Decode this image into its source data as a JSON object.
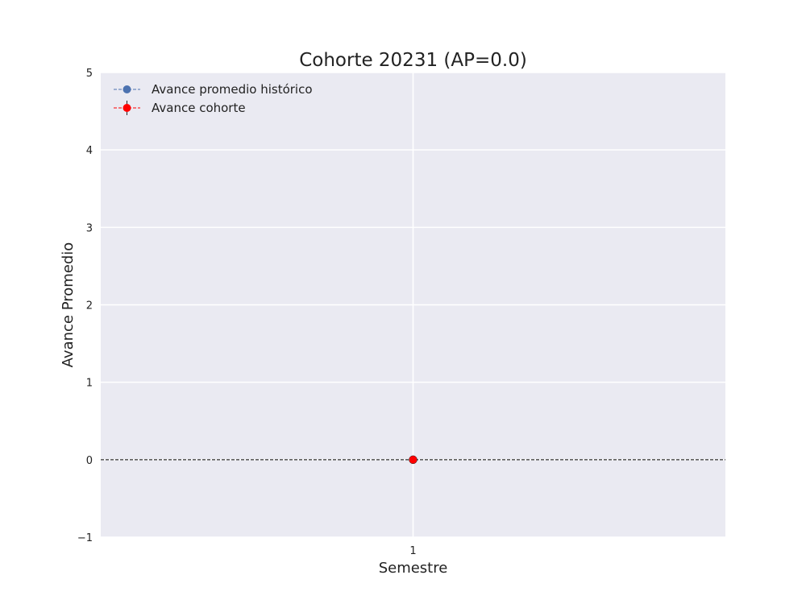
{
  "chart_data": {
    "type": "line",
    "title": "Cohorte 20231 (AP=0.0)",
    "xlabel": "Semestre",
    "ylabel": "Avance Promedio",
    "x_ticks": [
      "1"
    ],
    "y_ticks": [
      "−1",
      "0",
      "1",
      "2",
      "3",
      "4",
      "5"
    ],
    "ylim": [
      -1,
      5
    ],
    "grid": true,
    "legend_position": "top-left",
    "reference_line_y": 0,
    "series": [
      {
        "name": "Avance promedio histórico",
        "color": "#4c72b0",
        "x": [],
        "y": []
      },
      {
        "name": "Avance cohorte",
        "color": "#ff0000",
        "x": [
          1
        ],
        "y": [
          0
        ]
      }
    ],
    "colors": {
      "plot_background": "#eaeaf2",
      "grid": "#ffffff",
      "reference_line": "#000000"
    }
  }
}
